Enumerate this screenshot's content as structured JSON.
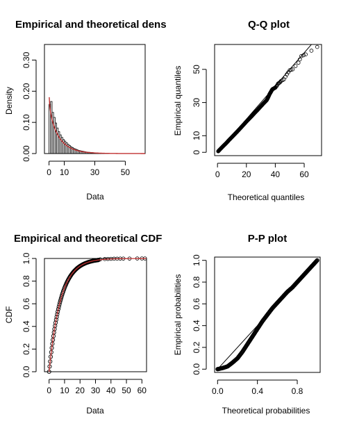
{
  "colors": {
    "theoretical": "#C03030",
    "empirical": "#000000"
  },
  "chart_data": [
    {
      "type": "bar",
      "panel": "density",
      "title": "Empirical and theoretical dens",
      "xlabel": "Data",
      "ylabel": "Density",
      "xlim": [
        -3,
        63
      ],
      "ylim": [
        0,
        0.35
      ],
      "xticks": [
        "0",
        "10",
        "30",
        "50"
      ],
      "xtick_values": [
        0,
        10,
        30,
        50
      ],
      "yticks": [
        "0.00",
        "0.10",
        "0.20",
        "0.30"
      ],
      "ytick_values": [
        0,
        0.1,
        0.2,
        0.3
      ],
      "bin_width": 1,
      "histogram": [
        0.158,
        0.167,
        0.132,
        0.116,
        0.098,
        0.082,
        0.07,
        0.06,
        0.052,
        0.045,
        0.04,
        0.035,
        0.03,
        0.026,
        0.022,
        0.019,
        0.016,
        0.014,
        0.012,
        0.01,
        0.009,
        0.008,
        0.007,
        0.006,
        0.005,
        0.004,
        0.004,
        0.003,
        0.003,
        0.002,
        0.002,
        0.002,
        0.001,
        0.001,
        0.001,
        0.001
      ],
      "theoretical": {
        "shape": 0.9,
        "scale": 7.5,
        "cap": 0.35
      }
    },
    {
      "type": "scatter",
      "panel": "qq",
      "title": "Q-Q plot",
      "xlabel": "Theoretical quantiles",
      "ylabel": "Empirical quantiles",
      "xlim": [
        -2,
        72
      ],
      "ylim": [
        -2,
        65
      ],
      "xticks": [
        "0",
        "20",
        "40",
        "60"
      ],
      "xtick_values": [
        0,
        20,
        40,
        60
      ],
      "yticks": [
        "0",
        "10",
        "30",
        "50"
      ],
      "ytick_values": [
        0,
        10,
        30,
        50
      ],
      "points": [
        [
          0.5,
          0.6
        ],
        [
          2,
          2
        ],
        [
          4,
          3.8
        ],
        [
          6,
          5.5
        ],
        [
          8,
          7.4
        ],
        [
          10,
          9.2
        ],
        [
          12,
          11
        ],
        [
          14,
          12.8
        ],
        [
          16,
          14.7
        ],
        [
          18,
          16.6
        ],
        [
          20,
          18.5
        ],
        [
          22,
          20.3
        ],
        [
          24,
          22.1
        ],
        [
          26,
          24
        ],
        [
          28,
          25.8
        ],
        [
          30,
          27.7
        ],
        [
          32,
          29.6
        ],
        [
          34,
          31.4
        ],
        [
          35,
          33
        ],
        [
          36,
          35
        ],
        [
          37,
          36.5
        ],
        [
          38,
          38
        ],
        [
          39,
          38.5
        ],
        [
          40,
          39
        ],
        [
          41,
          40
        ],
        [
          42,
          41.5
        ],
        [
          43,
          42
        ],
        [
          44,
          43
        ],
        [
          46,
          44
        ],
        [
          48,
          47
        ],
        [
          50,
          49.5
        ],
        [
          52,
          50
        ],
        [
          56,
          54
        ],
        [
          58,
          58
        ],
        [
          61,
          59
        ],
        [
          69,
          63.5
        ]
      ],
      "reference_line": [
        [
          0,
          0
        ],
        [
          72,
          72
        ]
      ]
    },
    {
      "type": "line",
      "panel": "cdf",
      "title": "Empirical and theoretical CDF",
      "xlabel": "Data",
      "ylabel": "CDF",
      "xlim": [
        -3,
        63
      ],
      "ylim": [
        0,
        1
      ],
      "xticks": [
        "0",
        "10",
        "20",
        "30",
        "40",
        "50",
        "60"
      ],
      "xtick_values": [
        0,
        10,
        20,
        30,
        40,
        50,
        60
      ],
      "yticks": [
        "0.0",
        "0.2",
        "0.4",
        "0.6",
        "0.8",
        "1.0"
      ],
      "ytick_values": [
        0,
        0.2,
        0.4,
        0.6,
        0.8,
        1.0
      ],
      "rate": 0.135,
      "tail_points": [
        [
          33,
          0.992
        ],
        [
          36,
          0.995
        ],
        [
          38,
          0.996
        ],
        [
          40,
          0.997
        ],
        [
          42,
          0.998
        ],
        [
          44,
          0.998
        ],
        [
          46,
          0.999
        ],
        [
          48,
          0.999
        ],
        [
          52,
          0.999
        ],
        [
          57,
          1.0
        ],
        [
          60,
          1.0
        ],
        [
          62,
          1.0
        ]
      ]
    },
    {
      "type": "scatter",
      "panel": "pp",
      "title": "P-P plot",
      "xlabel": "Theoretical probabilities",
      "ylabel": "Empirical probabilities",
      "xlim": [
        -0.03,
        1.03
      ],
      "ylim": [
        -0.03,
        1.03
      ],
      "xticks": [
        "0.0",
        "0.4",
        "0.8"
      ],
      "xtick_values": [
        0,
        0.4,
        0.8
      ],
      "yticks": [
        "0.0",
        "0.2",
        "0.4",
        "0.6",
        "0.8",
        "1.0"
      ],
      "ytick_values": [
        0,
        0.2,
        0.4,
        0.6,
        0.8,
        1.0
      ],
      "curve": [
        [
          0,
          0
        ],
        [
          0.05,
          0.01
        ],
        [
          0.1,
          0.025
        ],
        [
          0.15,
          0.06
        ],
        [
          0.2,
          0.1
        ],
        [
          0.25,
          0.16
        ],
        [
          0.3,
          0.23
        ],
        [
          0.35,
          0.3
        ],
        [
          0.4,
          0.37
        ],
        [
          0.45,
          0.44
        ],
        [
          0.5,
          0.5
        ],
        [
          0.55,
          0.56
        ],
        [
          0.6,
          0.61
        ],
        [
          0.65,
          0.66
        ],
        [
          0.7,
          0.71
        ],
        [
          0.75,
          0.75
        ],
        [
          0.8,
          0.8
        ],
        [
          0.85,
          0.85
        ],
        [
          0.9,
          0.9
        ],
        [
          0.95,
          0.95
        ],
        [
          1.0,
          1.0
        ]
      ],
      "reference_line": [
        [
          0,
          0
        ],
        [
          1,
          1
        ]
      ]
    }
  ]
}
